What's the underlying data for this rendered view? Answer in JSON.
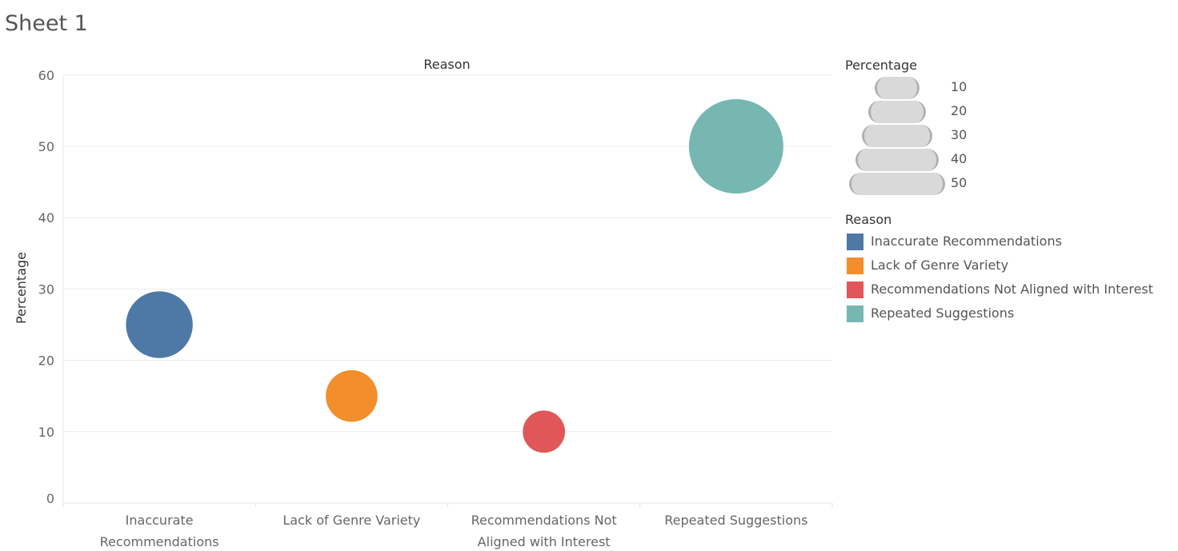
{
  "sheet_title": "Sheet 1",
  "chart_data": {
    "type": "scatter",
    "title": "",
    "column_header": "Reason",
    "ylabel": "Percentage",
    "ylim": [
      0,
      60
    ],
    "yticks": [
      0,
      10,
      20,
      30,
      40,
      50,
      60
    ],
    "grid": true,
    "categories": [
      "Inaccurate Recommendations",
      "Lack of Genre Variety",
      "Recommendations Not Aligned with Interest",
      "Repeated Suggestions"
    ],
    "category_tick_labels": [
      [
        "Inaccurate",
        "Recommendations"
      ],
      [
        "Lack of Genre Variety"
      ],
      [
        "Recommendations Not",
        "Aligned with Interest"
      ],
      [
        "Repeated Suggestions"
      ]
    ],
    "values": [
      25,
      15,
      10,
      50
    ],
    "size_by": "Percentage",
    "color_by": "Reason",
    "colors": [
      "#4e79a7",
      "#f28e2b",
      "#e15759",
      "#76b7b2"
    ],
    "legend_placement": "right",
    "size_legend": {
      "title": "Percentage",
      "values": [
        10,
        20,
        30,
        40,
        50
      ]
    },
    "color_legend": {
      "title": "Reason",
      "items": [
        {
          "label": "Inaccurate Recommendations",
          "color": "#4e79a7"
        },
        {
          "label": "Lack of Genre Variety",
          "color": "#f28e2b"
        },
        {
          "label": "Recommendations Not Aligned with Interest",
          "color": "#e15759"
        },
        {
          "label": "Repeated Suggestions",
          "color": "#76b7b2"
        }
      ]
    }
  }
}
